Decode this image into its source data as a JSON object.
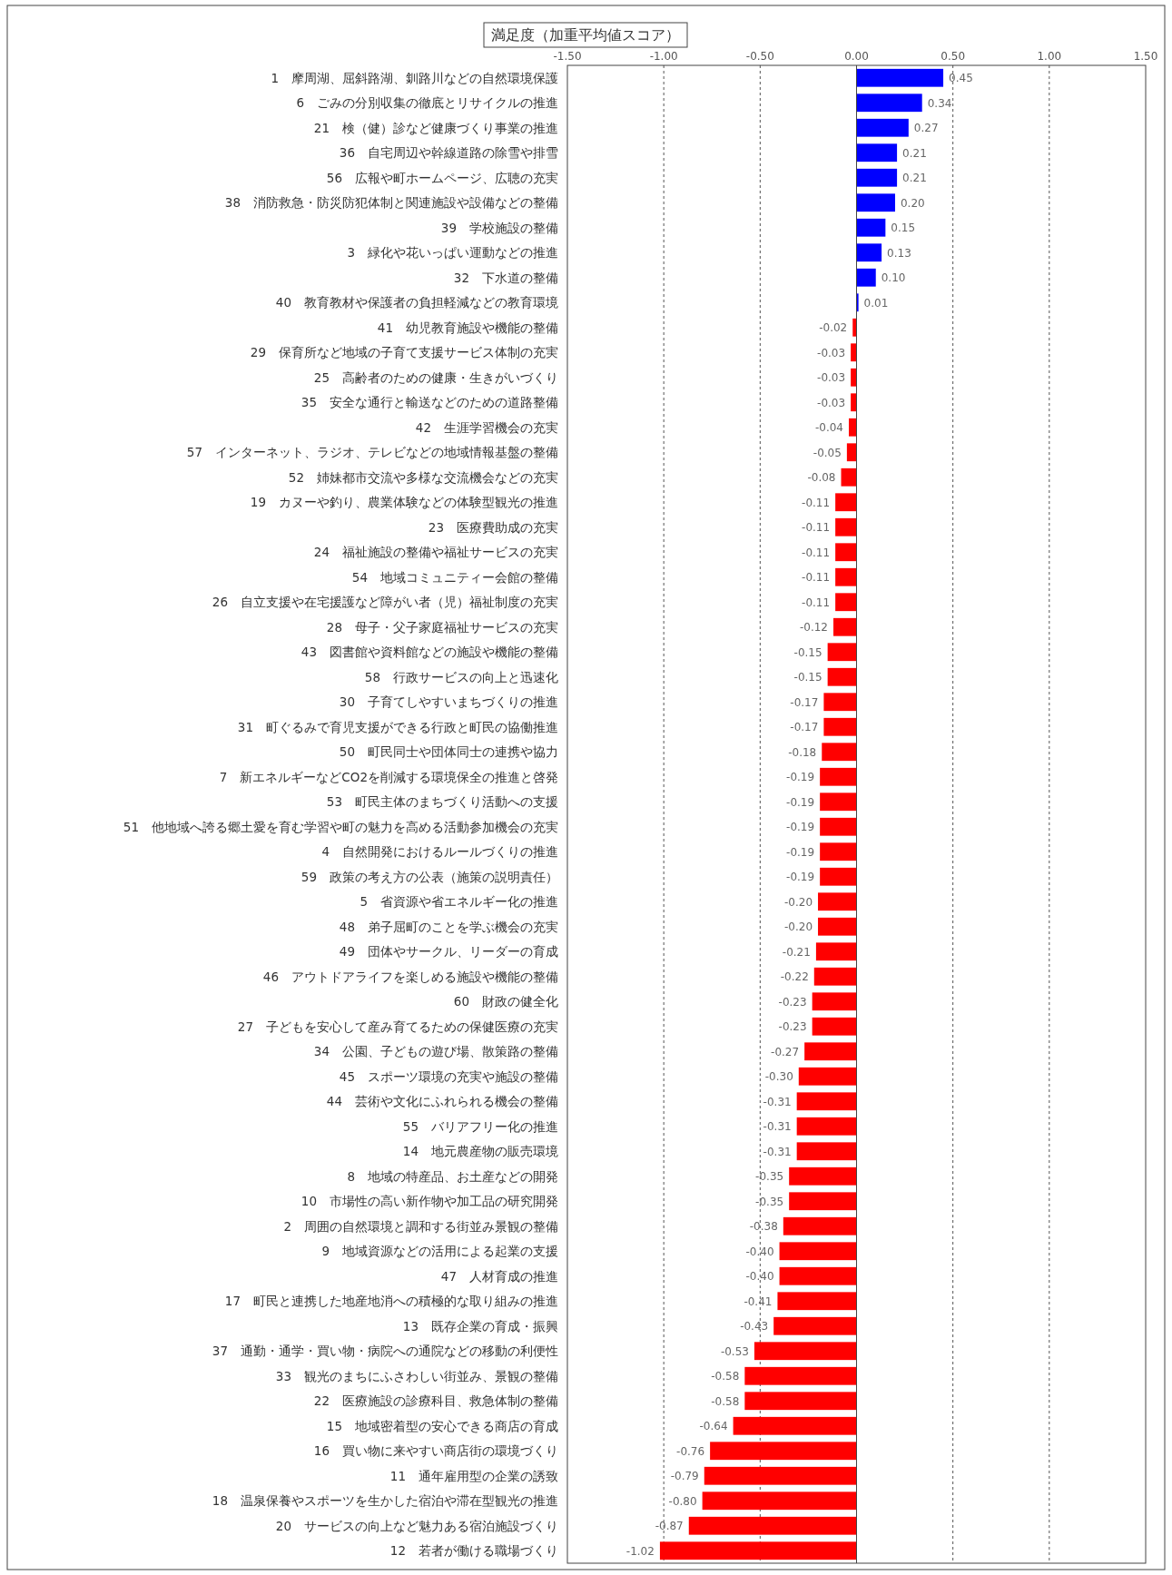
{
  "chart_data": {
    "type": "bar",
    "orientation": "horizontal",
    "title": "満足度（加重平均値スコア）",
    "categories": [
      "1　摩周湖、屈斜路湖、釧路川などの自然環境保護",
      "6　ごみの分別収集の徹底とリサイクルの推進",
      "21　検（健）診など健康づくり事業の推進",
      "36　自宅周辺や幹線道路の除雪や排雪",
      "56　広報や町ホームページ、広聴の充実",
      "38　消防救急・防災防犯体制と関連施設や設備などの整備",
      "39　学校施設の整備",
      "3　緑化や花いっぱい運動などの推進",
      "32　下水道の整備",
      "40　教育教材や保護者の負担軽減などの教育環境",
      "41　幼児教育施設や機能の整備",
      "29　保育所など地域の子育て支援サービス体制の充実",
      "25　高齢者のための健康・生きがいづくり",
      "35　安全な通行と輸送などのための道路整備",
      "42　生涯学習機会の充実",
      "57　インターネット、ラジオ、テレビなどの地域情報基盤の整備",
      "52　姉妹都市交流や多様な交流機会などの充実",
      "19　カヌーや釣り、農業体験などの体験型観光の推進",
      "23　医療費助成の充実",
      "24　福祉施設の整備や福祉サービスの充実",
      "54　地域コミュニティー会館の整備",
      "26　自立支援や在宅援護など障がい者（児）福祉制度の充実",
      "28　母子・父子家庭福祉サービスの充実",
      "43　図書館や資料館などの施設や機能の整備",
      "58　行政サービスの向上と迅速化",
      "30　子育てしやすいまちづくりの推進",
      "31　町ぐるみで育児支援ができる行政と町民の協働推進",
      "50　町民同士や団体同士の連携や協力",
      "7　新エネルギーなどCO2を削減する環境保全の推進と啓発",
      "53　町民主体のまちづくり活動への支援",
      "51　他地域へ誇る郷土愛を育む学習や町の魅力を高める活動参加機会の充実",
      "4　自然開発におけるルールづくりの推進",
      "59　政策の考え方の公表（施策の説明責任）",
      "5　省資源や省エネルギー化の推進",
      "48　弟子屈町のことを学ぶ機会の充実",
      "49　団体やサークル、リーダーの育成",
      "46　アウトドアライフを楽しめる施設や機能の整備",
      "60　財政の健全化",
      "27　子どもを安心して産み育てるための保健医療の充実",
      "34　公園、子どもの遊び場、散策路の整備",
      "45　スポーツ環境の充実や施設の整備",
      "44　芸術や文化にふれられる機会の整備",
      "55　バリアフリー化の推進",
      "14　地元農産物の販売環境",
      "8　地域の特産品、お土産などの開発",
      "10　市場性の高い新作物や加工品の研究開発",
      "2　周囲の自然環境と調和する街並み景観の整備",
      "9　地域資源などの活用による起業の支援",
      "47　人材育成の推進",
      "17　町民と連携した地産地消への積極的な取り組みの推進",
      "13　既存企業の育成・振興",
      "37　通勤・通学・買い物・病院への通院などの移動の利便性",
      "33　観光のまちにふさわしい街並み、景観の整備",
      "22　医療施設の診療科目、救急体制の整備",
      "15　地域密着型の安心できる商店の育成",
      "16　買い物に来やすい商店街の環境づくり",
      "11　通年雇用型の企業の誘致",
      "18　温泉保養やスポーツを生かした宿泊や滞在型観光の推進",
      "20　サービスの向上など魅力ある宿泊施設づくり",
      "12　若者が働ける職場づくり"
    ],
    "values": [
      0.45,
      0.34,
      0.27,
      0.21,
      0.21,
      0.2,
      0.15,
      0.13,
      0.1,
      0.01,
      -0.02,
      -0.03,
      -0.03,
      -0.03,
      -0.04,
      -0.05,
      -0.08,
      -0.11,
      -0.11,
      -0.11,
      -0.11,
      -0.11,
      -0.12,
      -0.15,
      -0.15,
      -0.17,
      -0.17,
      -0.18,
      -0.19,
      -0.19,
      -0.19,
      -0.19,
      -0.19,
      -0.2,
      -0.2,
      -0.21,
      -0.22,
      -0.23,
      -0.23,
      -0.27,
      -0.3,
      -0.31,
      -0.31,
      -0.31,
      -0.35,
      -0.35,
      -0.38,
      -0.4,
      -0.4,
      -0.41,
      -0.43,
      -0.53,
      -0.58,
      -0.58,
      -0.64,
      -0.76,
      -0.79,
      -0.8,
      -0.87,
      -1.02
    ],
    "value_labels": [
      "0.45",
      "0.34",
      "0.27",
      "0.21",
      "0.21",
      "0.20",
      "0.15",
      "0.13",
      "0.10",
      "0.01",
      "-0.02",
      "-0.03",
      "-0.03",
      "-0.03",
      "-0.04",
      "-0.05",
      "-0.08",
      "-0.11",
      "-0.11",
      "-0.11",
      "-0.11",
      "-0.11",
      "-0.12",
      "-0.15",
      "-0.15",
      "-0.17",
      "-0.17",
      "-0.18",
      "-0.19",
      "-0.19",
      "-0.19",
      "-0.19",
      "-0.19",
      "-0.20",
      "-0.20",
      "-0.21",
      "-0.22",
      "-0.23",
      "-0.23",
      "-0.27",
      "-0.30",
      "-0.31",
      "-0.31",
      "-0.31",
      "-0.35",
      "-0.35",
      "-0.38",
      "-0.40",
      "-0.40",
      "-0.41",
      "-0.43",
      "-0.53",
      "-0.58",
      "-0.58",
      "-0.64",
      "-0.76",
      "-0.79",
      "-0.80",
      "-0.87",
      "-1.02"
    ],
    "colors": [
      "#0000ff",
      "#0000ff",
      "#0000ff",
      "#0000ff",
      "#0000ff",
      "#0000ff",
      "#0000ff",
      "#0000ff",
      "#0000ff",
      "#0000ff",
      "#ff0000",
      "#ff0000",
      "#ff0000",
      "#ff0000",
      "#ff0000",
      "#ff0000",
      "#ff0000",
      "#ff0000",
      "#ff0000",
      "#ff0000",
      "#ff0000",
      "#ff0000",
      "#ff0000",
      "#ff0000",
      "#ff0000",
      "#ff0000",
      "#ff0000",
      "#ff0000",
      "#ff0000",
      "#ff0000",
      "#ff0000",
      "#ff0000",
      "#ff0000",
      "#ff0000",
      "#ff0000",
      "#ff0000",
      "#ff0000",
      "#ff0000",
      "#ff0000",
      "#ff0000",
      "#ff0000",
      "#ff0000",
      "#ff0000",
      "#ff0000",
      "#ff0000",
      "#ff0000",
      "#ff0000",
      "#ff0000",
      "#ff0000",
      "#ff0000",
      "#ff0000",
      "#ff0000",
      "#ff0000",
      "#ff0000",
      "#ff0000",
      "#ff0000",
      "#ff0000",
      "#ff0000",
      "#ff0000",
      "#ff0000"
    ],
    "xlim": [
      -1.5,
      1.5
    ],
    "xticks": [
      {
        "value": -1.5,
        "label": "-1.50"
      },
      {
        "value": -1,
        "label": "-1.00"
      },
      {
        "value": -0.5,
        "label": "-0.50"
      },
      {
        "value": 0,
        "label": "0.00"
      },
      {
        "value": 0.5,
        "label": "0.50"
      },
      {
        "value": 1,
        "label": "1.00"
      },
      {
        "value": 1.5,
        "label": "1.50"
      }
    ],
    "grid": "x"
  }
}
